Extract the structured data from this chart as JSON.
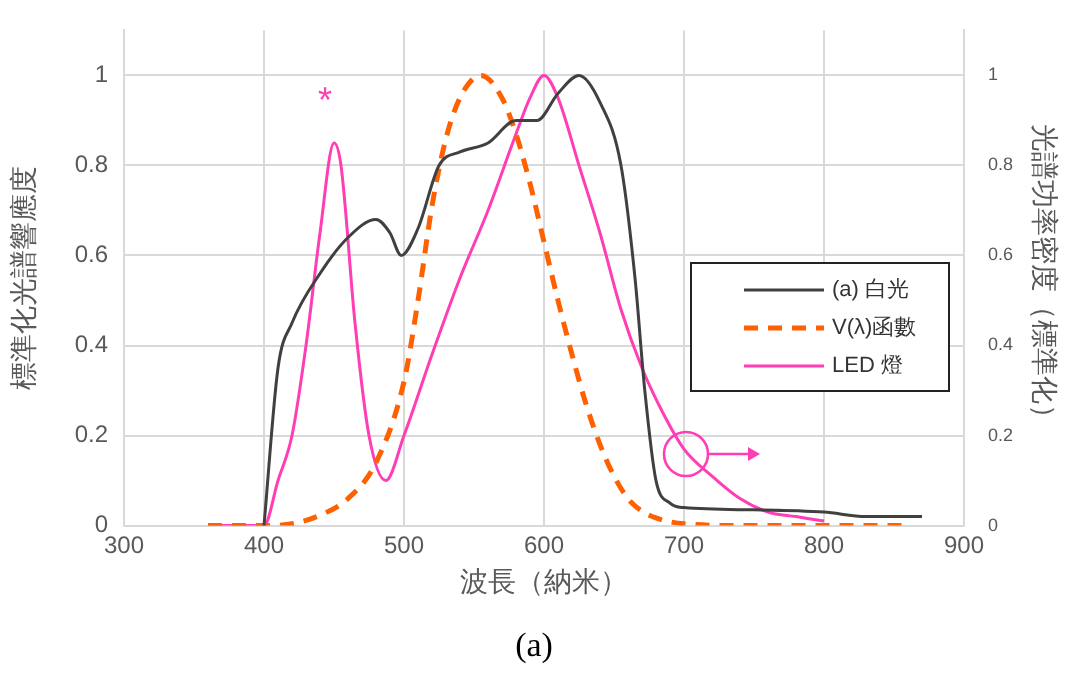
{
  "chart_data": {
    "type": "line",
    "xlabel": "波長（納米）",
    "ylabel": "標準化光譜響應度",
    "y2label": "光譜功率密度（標準化）",
    "xlim": [
      300,
      900
    ],
    "xticks": [
      300,
      400,
      500,
      600,
      700,
      800,
      900
    ],
    "ylim": [
      0,
      1.1
    ],
    "yticks": [
      0,
      0.2,
      0.4,
      0.6,
      0.8,
      1
    ],
    "y2lim": [
      0,
      1.1
    ],
    "y2ticks": [
      0,
      0.2,
      0.4,
      0.6,
      0.8,
      1
    ],
    "grid": true,
    "legend": "right",
    "marker": "none",
    "series": [
      {
        "name": "(a) 白光",
        "color": "#404040",
        "line_style": "solid",
        "x": [
          400,
          410,
          420,
          440,
          460,
          480,
          490,
          498,
          510,
          525,
          540,
          560,
          580,
          595,
          610,
          625,
          640,
          655,
          665,
          672,
          680,
          690,
          700,
          750,
          800,
          830,
          870
        ],
        "values": [
          0,
          0.35,
          0.45,
          0.56,
          0.64,
          0.68,
          0.65,
          0.6,
          0.66,
          0.8,
          0.83,
          0.85,
          0.9,
          0.9,
          0.96,
          1,
          0.94,
          0.8,
          0.55,
          0.3,
          0.1,
          0.05,
          0.04,
          0.035,
          0.03,
          0.02,
          0.02
        ]
      },
      {
        "name": "V(λ)函數",
        "color": "#ff6000",
        "line_style": "dashed",
        "x": [
          360,
          400,
          420,
          440,
          460,
          480,
          500,
          510,
          520,
          530,
          540,
          555,
          570,
          580,
          590,
          600,
          610,
          620,
          630,
          640,
          650,
          660,
          670,
          680,
          700,
          750,
          860
        ],
        "values": [
          0,
          0,
          0.004,
          0.023,
          0.06,
          0.14,
          0.32,
          0.5,
          0.71,
          0.86,
          0.95,
          1,
          0.95,
          0.87,
          0.76,
          0.63,
          0.5,
          0.38,
          0.27,
          0.18,
          0.11,
          0.06,
          0.032,
          0.017,
          0.004,
          0,
          0
        ]
      },
      {
        "name": "LED 燈",
        "color": "#ff3eb5",
        "line_style": "solid",
        "axis": "y2",
        "x": [
          360,
          400,
          410,
          420,
          430,
          440,
          450,
          455,
          465,
          475,
          487,
          500,
          520,
          540,
          560,
          580,
          590,
          600,
          610,
          625,
          640,
          655,
          670,
          685,
          700,
          720,
          740,
          760,
          780,
          800
        ],
        "values": [
          0,
          0,
          0.1,
          0.2,
          0.4,
          0.65,
          0.85,
          0.8,
          0.45,
          0.2,
          0.1,
          0.2,
          0.38,
          0.55,
          0.7,
          0.87,
          0.95,
          1,
          0.95,
          0.8,
          0.65,
          0.48,
          0.35,
          0.25,
          0.17,
          0.11,
          0.06,
          0.03,
          0.02,
          0.01
        ]
      }
    ],
    "annotations": [
      "*",
      "(a)"
    ]
  }
}
